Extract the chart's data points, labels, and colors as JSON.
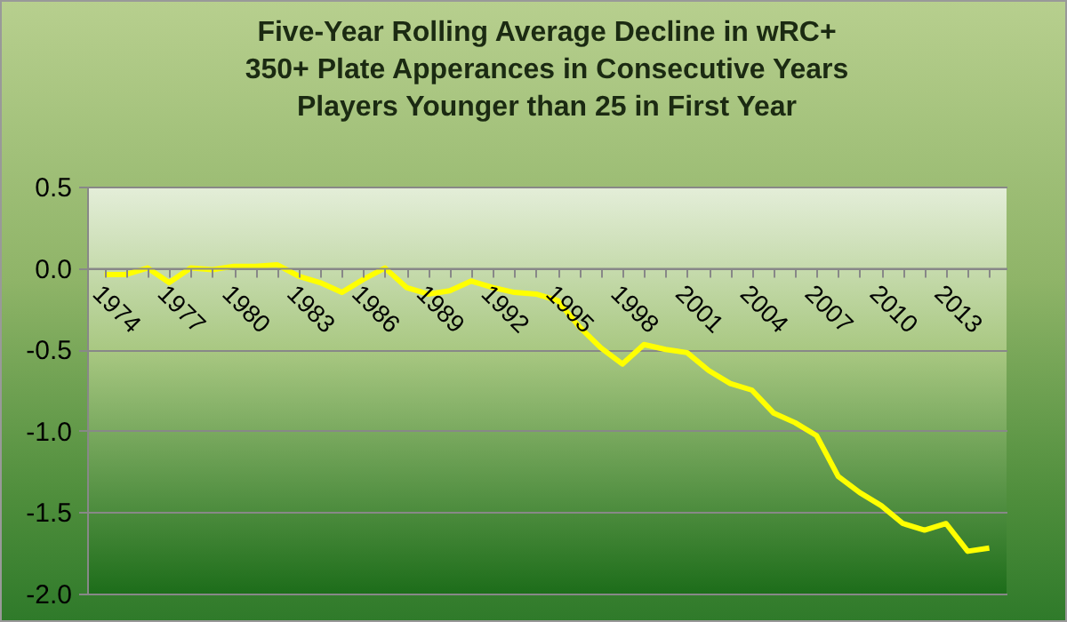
{
  "chart_data": {
    "type": "line",
    "title": "Five-Year Rolling Average Decline in wRC+\n350+ Plate Apperances in Consecutive Years\nPlayers Younger than 25 in First Year",
    "categories": [
      "1974",
      null,
      null,
      "1977",
      null,
      null,
      "1980",
      null,
      null,
      "1983",
      null,
      null,
      "1986",
      null,
      null,
      "1989",
      null,
      null,
      "1992",
      null,
      null,
      "1995",
      null,
      null,
      "1998",
      null,
      null,
      "2001",
      null,
      null,
      "2004",
      null,
      null,
      "2007",
      null,
      null,
      "2010",
      null,
      null,
      "2013",
      null,
      null
    ],
    "series": [
      {
        "color": "#ffff00",
        "values": [
          -0.04,
          -0.04,
          0.0,
          -0.09,
          0.0,
          -0.01,
          0.01,
          0.01,
          0.02,
          -0.05,
          -0.09,
          -0.15,
          -0.07,
          0.0,
          -0.12,
          -0.16,
          -0.14,
          -0.08,
          -0.12,
          -0.15,
          -0.16,
          -0.2,
          -0.36,
          -0.49,
          -0.59,
          -0.47,
          -0.5,
          -0.52,
          -0.63,
          -0.71,
          -0.75,
          -0.89,
          -0.95,
          -1.03,
          -1.28,
          -1.38,
          -1.46,
          -1.57,
          -1.61,
          -1.57,
          -1.74,
          -1.72
        ]
      }
    ],
    "ylim": [
      -2,
      0.5
    ],
    "yticks": [
      {
        "value": -2,
        "label": "-2.0"
      },
      -1.5,
      {
        "value": -1,
        "label": "-1.0"
      },
      -0.5,
      {
        "value": 0,
        "label": "0.0"
      },
      0.5
    ],
    "grid": "y",
    "marker": "none",
    "line_style": "solid"
  }
}
